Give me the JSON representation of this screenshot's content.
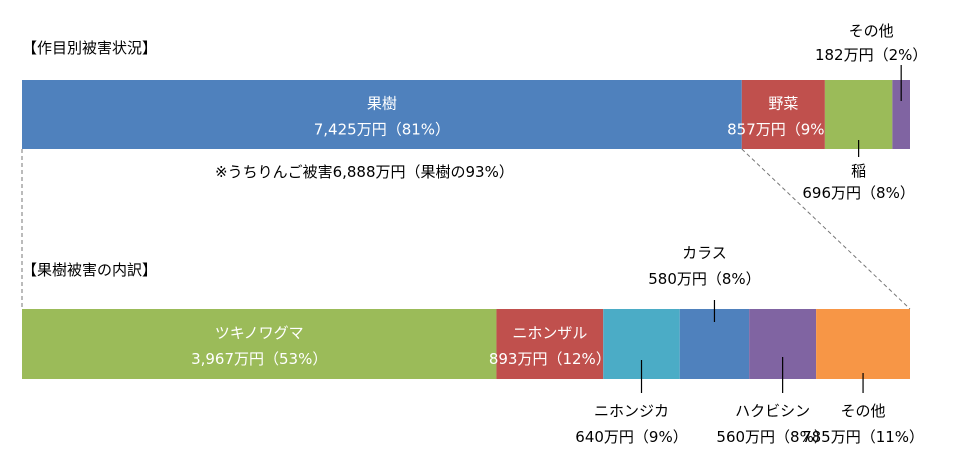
{
  "chart_data": [
    {
      "type": "bar",
      "orientation": "horizontal-stacked-100",
      "title": "【作目別被害状況】",
      "note": "※うちりんご被害6,888万円（果樹の93%）",
      "unit": "万円",
      "segments": [
        {
          "name": "果樹",
          "value": 7425,
          "value_label": "7,425万円",
          "pct_label": "（81%）",
          "color": "#4f81bd"
        },
        {
          "name": "野菜",
          "value": 857,
          "value_label": "857万円",
          "pct_label": "（9%）",
          "color": "#c0504d"
        },
        {
          "name": "稲",
          "value": 696,
          "value_label": "696万円",
          "pct_label": "（8%）",
          "color": "#9bbb59"
        },
        {
          "name": "その他",
          "value": 182,
          "value_label": "182万円",
          "pct_label": "（2%）",
          "color": "#8064a2"
        }
      ]
    },
    {
      "type": "bar",
      "orientation": "horizontal-stacked-100",
      "title": "【果樹被害の内訳】",
      "unit": "万円",
      "segments": [
        {
          "name": "ツキノワグマ",
          "value": 3967,
          "value_label": "3,967万円",
          "pct_label": "（53%）",
          "color": "#9bbb59"
        },
        {
          "name": "ニホンザル",
          "value": 893,
          "value_label": "893万円",
          "pct_label": "（12%）",
          "color": "#c0504d"
        },
        {
          "name": "ニホンジカ",
          "value": 640,
          "value_label": "640万円",
          "pct_label": "（9%）",
          "color": "#4bacc6"
        },
        {
          "name": "カラス",
          "value": 580,
          "value_label": "580万円",
          "pct_label": "（8%）",
          "color": "#4f81bd"
        },
        {
          "name": "ハクビシン",
          "value": 560,
          "value_label": "560万円",
          "pct_label": "（8%）",
          "color": "#8064a2"
        },
        {
          "name": "その他",
          "value": 785,
          "value_label": "785万円",
          "pct_label": "（11%）",
          "color": "#f79646"
        }
      ]
    }
  ]
}
